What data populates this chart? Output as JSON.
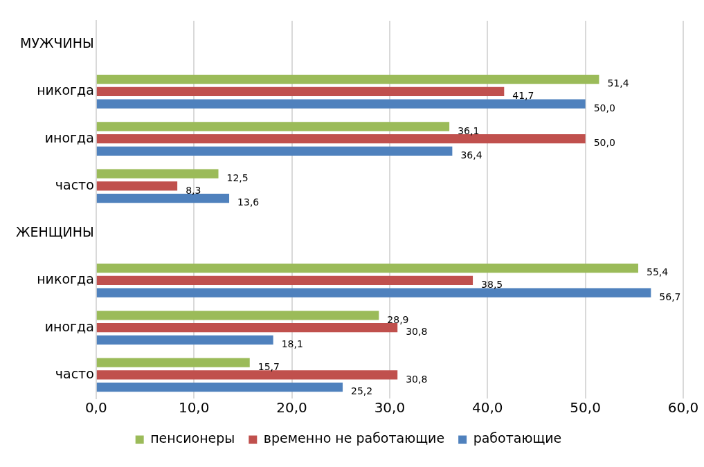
{
  "chart_data": {
    "type": "bar",
    "orientation": "horizontal",
    "categories": [
      "МУЖЧИНЫ",
      "никогда",
      "иногда",
      "часто",
      "ЖЕНЩИНЫ",
      "никогда",
      "иногда",
      "часто"
    ],
    "series": [
      {
        "name": "пенсионеры",
        "color": "#9bbb59",
        "values": [
          null,
          51.4,
          36.1,
          12.5,
          null,
          55.4,
          28.9,
          15.7
        ],
        "value_labels": [
          null,
          "51,4",
          "36,1",
          "12,5",
          null,
          "55,4",
          "28,9",
          "15,7"
        ]
      },
      {
        "name": "временно не работающие",
        "color": "#c0504d",
        "values": [
          null,
          41.7,
          50.0,
          8.3,
          null,
          38.5,
          30.8,
          30.8
        ],
        "value_labels": [
          null,
          "41,7",
          "50,0",
          "8,3",
          null,
          "38,5",
          "30,8",
          "30,8"
        ]
      },
      {
        "name": "работающие",
        "color": "#4f81bd",
        "values": [
          null,
          50.0,
          36.4,
          13.6,
          null,
          56.7,
          18.1,
          25.2
        ],
        "value_labels": [
          null,
          "50,0",
          "36,4",
          "13,6",
          null,
          "56,7",
          "18,1",
          "25,2"
        ]
      }
    ],
    "xlim": [
      0,
      60
    ],
    "xticks": [
      {
        "value": 0,
        "label": "0,0"
      },
      {
        "value": 10,
        "label": "10,0"
      },
      {
        "value": 20,
        "label": "20,0"
      },
      {
        "value": 30,
        "label": "30,0"
      },
      {
        "value": 40,
        "label": "40,0"
      },
      {
        "value": 50,
        "label": "50,0"
      },
      {
        "value": 60,
        "label": "60,0"
      }
    ],
    "grid": "x",
    "legend": "bottom"
  }
}
